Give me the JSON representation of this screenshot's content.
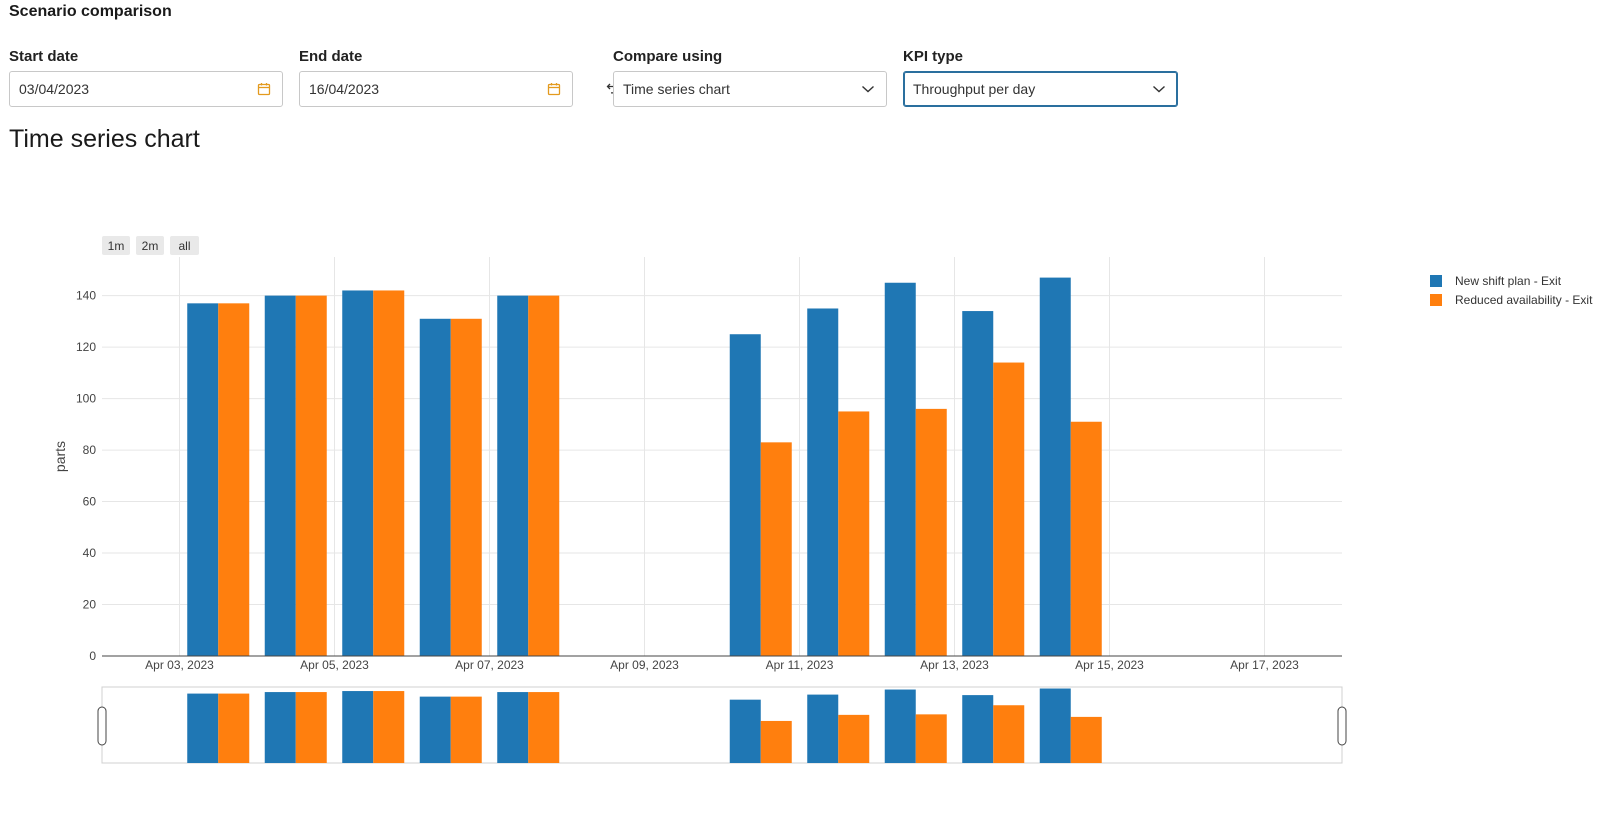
{
  "page": {
    "title": "Scenario comparison"
  },
  "filters": {
    "start_date": {
      "label": "Start date",
      "value": "03/04/2023"
    },
    "end_date": {
      "label": "End date",
      "value": "16/04/2023"
    },
    "compare_using": {
      "label": "Compare using",
      "value": "Time series chart"
    },
    "kpi_type": {
      "label": "KPI type",
      "value": "Throughput per day"
    }
  },
  "chart_section": {
    "title": "Time series chart",
    "range_buttons": [
      "1m",
      "2m",
      "all"
    ]
  },
  "chart_data": {
    "type": "bar",
    "ylabel": "parts",
    "xlabel": "",
    "ylim": [
      0,
      155
    ],
    "yticks": [
      0,
      20,
      40,
      60,
      80,
      100,
      120,
      140
    ],
    "xlim": [
      "2023-04-02",
      "2023-04-18"
    ],
    "x_tick_dates": [
      "2023-04-03",
      "2023-04-05",
      "2023-04-07",
      "2023-04-09",
      "2023-04-11",
      "2023-04-13",
      "2023-04-15",
      "2023-04-17"
    ],
    "x_tick_labels": [
      "Apr 03, 2023",
      "Apr 05, 2023",
      "Apr 07, 2023",
      "Apr 09, 2023",
      "Apr 11, 2023",
      "Apr 13, 2023",
      "Apr 15, 2023",
      "Apr 17, 2023"
    ],
    "x": [
      "2023-04-03",
      "2023-04-04",
      "2023-04-05",
      "2023-04-06",
      "2023-04-07",
      "2023-04-10",
      "2023-04-11",
      "2023-04-12",
      "2023-04-13",
      "2023-04-14"
    ],
    "series": [
      {
        "name": "New shift plan - Exit",
        "color": "#1f77b4",
        "values": [
          137,
          140,
          142,
          131,
          140,
          125,
          135,
          145,
          134,
          147
        ]
      },
      {
        "name": "Reduced availability - Exit",
        "color": "#ff7f0e",
        "values": [
          137,
          140,
          142,
          131,
          140,
          83,
          95,
          96,
          114,
          91
        ]
      }
    ],
    "grid": true,
    "legend_position": "top-right",
    "range_slider": true
  }
}
